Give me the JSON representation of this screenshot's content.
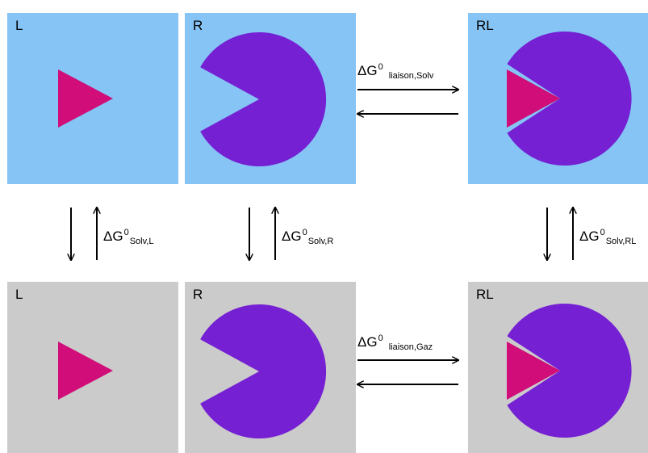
{
  "colors": {
    "solvent_bg": "#85C4F5",
    "gas_bg": "#CBCBCB",
    "receptor": "#7520D3",
    "ligand": "#D00D79",
    "arrow": "#000000"
  },
  "row_solv": {
    "panels": [
      {
        "label": "L",
        "content": "ligand"
      },
      {
        "label": "R",
        "content": "receptor"
      },
      {
        "label": "RL",
        "content": "complex"
      }
    ],
    "binding_energy": {
      "symbol": "ΔG",
      "sup": "0",
      "sub": "liaison,Solv"
    }
  },
  "row_gas": {
    "panels": [
      {
        "label": "L",
        "content": "ligand"
      },
      {
        "label": "R",
        "content": "receptor"
      },
      {
        "label": "RL",
        "content": "complex"
      }
    ],
    "binding_energy": {
      "symbol": "ΔG",
      "sup": "0",
      "sub": "liaison,Gaz"
    }
  },
  "solvation_energies": [
    {
      "symbol": "ΔG",
      "sup": "0",
      "sub": "Solv,L"
    },
    {
      "symbol": "ΔG",
      "sup": "0",
      "sub": "Solv,R"
    },
    {
      "symbol": "ΔG",
      "sup": "0",
      "sub": "Solv,RL"
    }
  ]
}
